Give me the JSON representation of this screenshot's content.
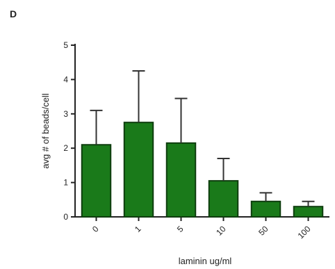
{
  "panel_label": "D",
  "chart_data": {
    "type": "bar",
    "categories": [
      "0",
      "1",
      "5",
      "10",
      "50",
      "100"
    ],
    "values": [
      2.1,
      2.75,
      2.15,
      1.05,
      0.45,
      0.3
    ],
    "errors": [
      1.0,
      1.5,
      1.3,
      0.65,
      0.25,
      0.15
    ],
    "error_bars": "upper",
    "ylim": [
      0,
      5
    ],
    "yticks": [
      0,
      1,
      2,
      3,
      4,
      5
    ],
    "xlabel": "laminin ug/ml",
    "ylabel": "avg # of beads/cell",
    "grid": false,
    "colors": {
      "bar_fill": "#1a7a1a",
      "bar_stroke": "#0e3d0e",
      "axis": "#222222",
      "error_bar": "#333333"
    }
  }
}
